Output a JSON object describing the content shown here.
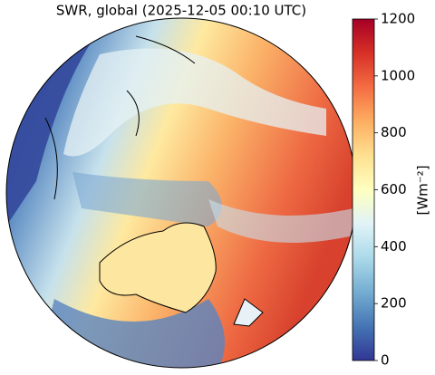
{
  "title": "SWR, global (2025-12-05 00:10 UTC)",
  "colorbar": {
    "label": "[Wm⁻²]",
    "lim": [
      0,
      1200
    ],
    "ticks": [
      0,
      200,
      400,
      600,
      800,
      1000,
      1200
    ],
    "colors": [
      "#313695",
      "#4575b4",
      "#74add1",
      "#abd9e9",
      "#e0f3f8",
      "#ffffbf",
      "#fee090",
      "#fdae61",
      "#f46d43",
      "#d73027",
      "#a50026"
    ]
  }
}
